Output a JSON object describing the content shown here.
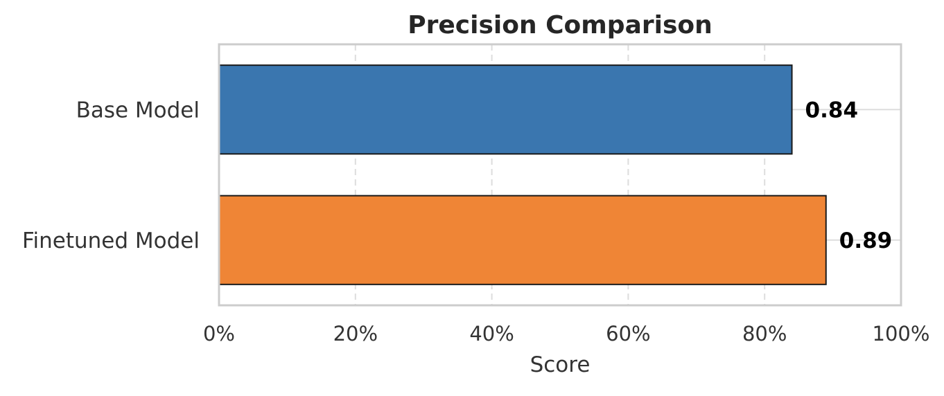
{
  "chart_data": {
    "type": "bar",
    "orientation": "horizontal",
    "title": "Precision Comparison",
    "xlabel": "Score",
    "ylabel": "",
    "categories": [
      "Base Model",
      "Finetuned Model"
    ],
    "values": [
      0.84,
      0.89
    ],
    "value_labels": [
      "0.84",
      "0.89"
    ],
    "colors": [
      "#3a76af",
      "#ef8536"
    ],
    "xlim": [
      0,
      1
    ],
    "xticks": [
      0,
      0.2,
      0.4,
      0.6,
      0.8,
      1.0
    ],
    "xtick_labels": [
      "0%",
      "20%",
      "40%",
      "60%",
      "80%",
      "100%"
    ],
    "grid": "vertical dashed",
    "legend": "none"
  }
}
